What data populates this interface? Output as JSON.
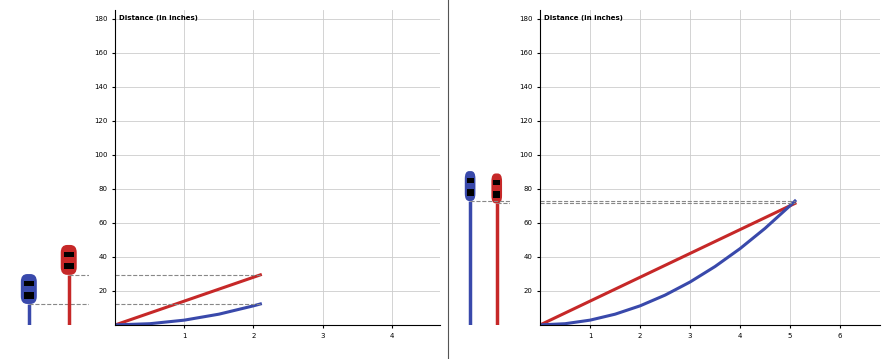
{
  "chart_data": [
    {
      "type": "line",
      "y_label": "Distance (in inches)",
      "x": [
        0,
        0.5,
        1,
        1.5,
        2,
        2.1
      ],
      "series": [
        {
          "color": "#c62828",
          "values": [
            0,
            7,
            14,
            21,
            28,
            29.4
          ]
        },
        {
          "color": "#3949ab",
          "values": [
            0,
            0.7,
            2.8,
            6.3,
            11.2,
            12.3
          ]
        }
      ],
      "xlim": [
        0,
        4.7
      ],
      "xticks": [
        1,
        2,
        3,
        4
      ],
      "ylim": [
        0,
        185
      ],
      "yticks": [
        20,
        40,
        60,
        80,
        100,
        120,
        140,
        160,
        180
      ],
      "grid": true
    },
    {
      "type": "line",
      "y_label": "Distance (in inches)",
      "x": [
        0,
        0.5,
        1,
        1.5,
        2,
        2.5,
        3,
        3.5,
        4,
        4.5,
        5,
        5.1
      ],
      "series": [
        {
          "color": "#c62828",
          "values": [
            0,
            7,
            14,
            21,
            28,
            35,
            42,
            49,
            56,
            63,
            70,
            71.4
          ]
        },
        {
          "color": "#3949ab",
          "values": [
            0,
            0.7,
            2.8,
            6.3,
            11.2,
            17.5,
            25.2,
            34.3,
            44.8,
            56.7,
            70,
            72.8
          ]
        }
      ],
      "xlim": [
        0,
        6.8
      ],
      "xticks": [
        1,
        2,
        3,
        4,
        5,
        6
      ],
      "ylim": [
        0,
        185
      ],
      "yticks": [
        20,
        40,
        60,
        80,
        100,
        120,
        140,
        160,
        180
      ],
      "grid": true
    }
  ]
}
